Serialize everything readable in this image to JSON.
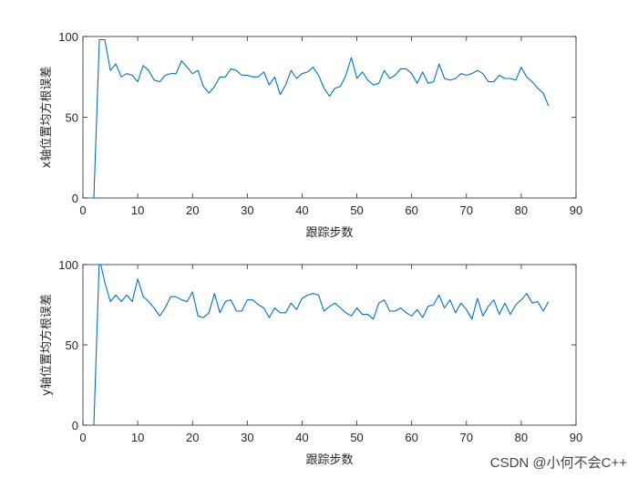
{
  "chart_data": [
    {
      "type": "line",
      "xlabel": "跟踪步数",
      "ylabel": "x轴位置均方根误差",
      "xlim": [
        0,
        90
      ],
      "ylim": [
        0,
        100
      ],
      "xticks": [
        "0",
        "10",
        "20",
        "30",
        "40",
        "50",
        "60",
        "70",
        "80",
        "90"
      ],
      "yticks": [
        "0",
        "50",
        "100"
      ],
      "grid": false,
      "series": [
        {
          "color": "#0072BD",
          "x": [
            1,
            2,
            3,
            4,
            5,
            6,
            7,
            8,
            9,
            10,
            11,
            12,
            13,
            14,
            15,
            16,
            17,
            18,
            19,
            20,
            21,
            22,
            23,
            24,
            25,
            26,
            27,
            28,
            29,
            30,
            31,
            32,
            33,
            34,
            35,
            36,
            37,
            38,
            39,
            40,
            41,
            42,
            43,
            44,
            45,
            46,
            47,
            48,
            49,
            50,
            51,
            52,
            53,
            54,
            55,
            56,
            57,
            58,
            59,
            60,
            61,
            62,
            63,
            64,
            65,
            66,
            67,
            68,
            69,
            70,
            71,
            72,
            73,
            74,
            75,
            76,
            77,
            78,
            79,
            80,
            81,
            82,
            83,
            84,
            85
          ],
          "y": [
            0,
            0,
            98,
            98,
            79,
            83,
            75,
            77,
            76,
            72,
            82,
            79,
            73,
            72,
            76,
            77,
            77,
            85,
            81,
            77,
            79,
            69,
            65,
            69,
            75,
            75,
            80,
            79,
            76,
            76,
            75,
            75,
            78,
            70,
            75,
            64,
            70,
            79,
            74,
            77,
            78,
            81,
            76,
            68,
            63,
            68,
            69,
            76,
            87,
            74,
            78,
            73,
            70,
            71,
            79,
            74,
            76,
            80,
            80,
            77,
            71,
            78,
            71,
            72,
            83,
            74,
            73,
            74,
            77,
            76,
            77,
            79,
            77,
            72,
            72,
            76,
            74,
            74,
            73,
            81,
            75,
            72,
            68,
            65,
            57
          ]
        }
      ]
    },
    {
      "type": "line",
      "xlabel": "跟踪步数",
      "ylabel": "y轴位置均方根误差",
      "xlim": [
        0,
        90
      ],
      "ylim": [
        0,
        100
      ],
      "xticks": [
        "0",
        "10",
        "20",
        "30",
        "40",
        "50",
        "60",
        "70",
        "80",
        "90"
      ],
      "yticks": [
        "0",
        "50",
        "100"
      ],
      "grid": false,
      "series": [
        {
          "color": "#0072BD",
          "x": [
            1,
            2,
            3,
            4,
            5,
            6,
            7,
            8,
            9,
            10,
            11,
            12,
            13,
            14,
            15,
            16,
            17,
            18,
            19,
            20,
            21,
            22,
            23,
            24,
            25,
            26,
            27,
            28,
            29,
            30,
            31,
            32,
            33,
            34,
            35,
            36,
            37,
            38,
            39,
            40,
            41,
            42,
            43,
            44,
            45,
            46,
            47,
            48,
            49,
            50,
            51,
            52,
            53,
            54,
            55,
            56,
            57,
            58,
            59,
            60,
            61,
            62,
            63,
            64,
            65,
            66,
            67,
            68,
            69,
            70,
            71,
            72,
            73,
            74,
            75,
            76,
            77,
            78,
            79,
            80,
            81,
            82,
            83,
            84,
            85
          ],
          "y": [
            0,
            0,
            104,
            89,
            77,
            81,
            77,
            81,
            77,
            91,
            80,
            77,
            73,
            68,
            73,
            80,
            80,
            78,
            77,
            83,
            68,
            67,
            70,
            82,
            70,
            77,
            78,
            71,
            71,
            78,
            78,
            75,
            73,
            67,
            73,
            70,
            70,
            76,
            72,
            79,
            81,
            82,
            81,
            71,
            74,
            76,
            73,
            70,
            68,
            73,
            69,
            69,
            66,
            76,
            78,
            71,
            71,
            73,
            70,
            68,
            72,
            67,
            74,
            75,
            81,
            73,
            78,
            70,
            76,
            72,
            66,
            79,
            68,
            74,
            78,
            69,
            76,
            69,
            75,
            78,
            82,
            76,
            77,
            71,
            77
          ]
        }
      ]
    }
  ],
  "watermark": "CSDN @小何不会C++"
}
